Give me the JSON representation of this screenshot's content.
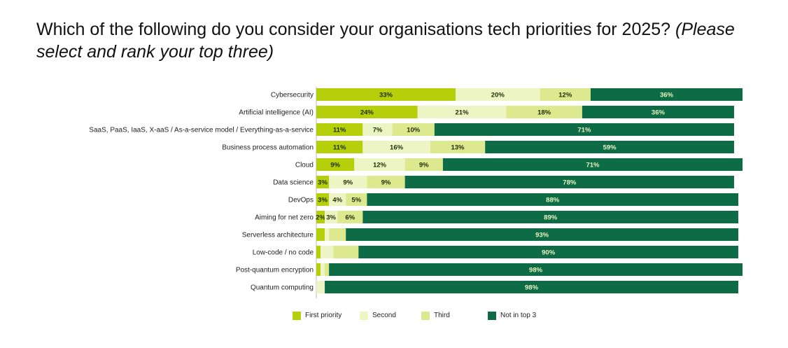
{
  "title": {
    "main": "Which of the following do you consider your organisations tech priorities for 2025?",
    "sub": "(Please select and rank your top three)"
  },
  "colors": {
    "First priority": "#b5cf0a",
    "Second": "#eef5c4",
    "Third": "#dde98e",
    "Not in top 3": "#0d6b45"
  },
  "chart_data": {
    "type": "bar",
    "orientation": "horizontal",
    "stacked": true,
    "unit": "%",
    "grid": false,
    "legend_position": "bottom",
    "categories": [
      "Cybersecurity",
      "Artificial intelligence (AI)",
      "SaaS, PaaS, IaaS, X-aaS / As-a-service model / Everything-as-a-service",
      "Business process automation",
      "Cloud",
      "Data science",
      "DevOps",
      "Aiming for net zero",
      "Serverless architecture",
      "Low-code / no code",
      "Post-quantum encryption",
      "Quantum computing"
    ],
    "series": [
      {
        "name": "First priority",
        "values": [
          33,
          24,
          11,
          11,
          9,
          3,
          3,
          2,
          2,
          1,
          1,
          0
        ]
      },
      {
        "name": "Second",
        "values": [
          20,
          21,
          7,
          16,
          12,
          9,
          4,
          3,
          1,
          3,
          1,
          2
        ]
      },
      {
        "name": "Third",
        "values": [
          12,
          18,
          10,
          13,
          9,
          9,
          5,
          6,
          4,
          6,
          1,
          0
        ]
      },
      {
        "name": "Not in top 3",
        "values": [
          36,
          36,
          71,
          59,
          71,
          78,
          88,
          89,
          93,
          90,
          98,
          98
        ]
      }
    ],
    "labels": [
      [
        "33%",
        "20%",
        "12%",
        "36%"
      ],
      [
        "24%",
        "21%",
        "18%",
        "36%"
      ],
      [
        "11%",
        "7%",
        "10%",
        "71%"
      ],
      [
        "11%",
        "16%",
        "13%",
        "59%"
      ],
      [
        "9%",
        "12%",
        "9%",
        "71%"
      ],
      [
        "3%",
        "9%",
        "9%",
        "78%"
      ],
      [
        "3%",
        "4%",
        "5%",
        "88%"
      ],
      [
        "2%",
        "3%",
        "6%",
        "89%"
      ],
      [
        "",
        "",
        "",
        "93%"
      ],
      [
        "",
        "",
        "",
        "90%"
      ],
      [
        "",
        "",
        "",
        "98%"
      ],
      [
        "",
        "",
        "",
        "98%"
      ]
    ]
  }
}
